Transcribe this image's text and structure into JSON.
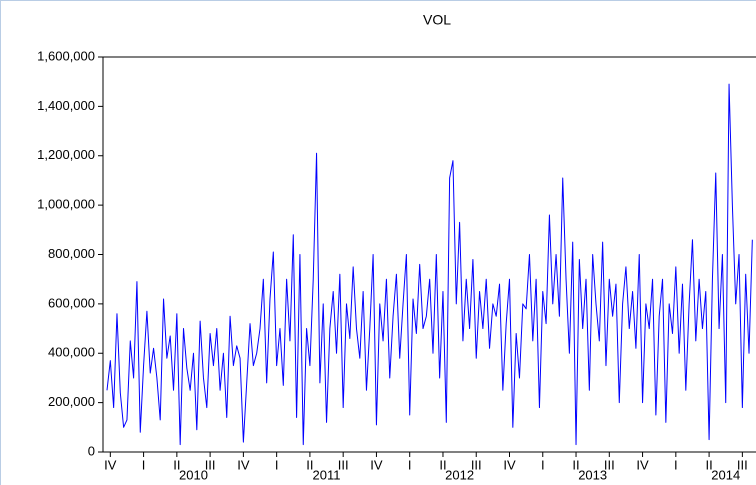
{
  "chart_data": {
    "type": "line",
    "title": "VOL",
    "xlim": [
      2009.82,
      2014.72
    ],
    "xticks": [
      {
        "value": 2009.875,
        "label": "IV"
      },
      {
        "value": 2010.125,
        "label": "I"
      },
      {
        "value": 2010.375,
        "label": "II"
      },
      {
        "value": 2010.625,
        "label": "III"
      },
      {
        "value": 2010.875,
        "label": "IV"
      },
      {
        "value": 2011.125,
        "label": "I"
      },
      {
        "value": 2011.375,
        "label": "II"
      },
      {
        "value": 2011.625,
        "label": "III"
      },
      {
        "value": 2011.875,
        "label": "IV"
      },
      {
        "value": 2012.125,
        "label": "I"
      },
      {
        "value": 2012.375,
        "label": "II"
      },
      {
        "value": 2012.625,
        "label": "III"
      },
      {
        "value": 2012.875,
        "label": "IV"
      },
      {
        "value": 2013.125,
        "label": "I"
      },
      {
        "value": 2013.375,
        "label": "II"
      },
      {
        "value": 2013.625,
        "label": "III"
      },
      {
        "value": 2013.875,
        "label": "IV"
      },
      {
        "value": 2014.125,
        "label": "I"
      },
      {
        "value": 2014.375,
        "label": "II"
      },
      {
        "value": 2014.625,
        "label": "III"
      }
    ],
    "year_labels": [
      {
        "value": 2010.5,
        "label": "2010"
      },
      {
        "value": 2011.5,
        "label": "2011"
      },
      {
        "value": 2012.5,
        "label": "2012"
      },
      {
        "value": 2013.5,
        "label": "2013"
      },
      {
        "value": 2014.5,
        "label": "2014"
      }
    ],
    "ylim": [
      0,
      1600000
    ],
    "yticks": [
      0,
      {
        "value": 200000,
        "label": "200,000"
      },
      {
        "value": 400000,
        "label": "400,000"
      },
      {
        "value": 600000,
        "label": "600,000"
      },
      {
        "value": 800000,
        "label": "800,000"
      },
      {
        "value": 1000000,
        "label": "1,000,000"
      },
      {
        "value": 1200000,
        "label": "1,200,000"
      },
      {
        "value": 1400000,
        "label": "1,400,000"
      },
      {
        "value": 1600000,
        "label": "1,600,000"
      }
    ],
    "grid": false,
    "series": [
      {
        "name": "VOL",
        "color": "#0000ff",
        "x": [
          2009.85,
          2009.875,
          2009.9,
          2009.925,
          2009.95,
          2009.975,
          2010,
          2010.025,
          2010.05,
          2010.075,
          2010.1,
          2010.125,
          2010.15,
          2010.175,
          2010.2,
          2010.225,
          2010.25,
          2010.275,
          2010.3,
          2010.325,
          2010.35,
          2010.375,
          2010.4,
          2010.425,
          2010.45,
          2010.475,
          2010.5,
          2010.525,
          2010.55,
          2010.575,
          2010.6,
          2010.625,
          2010.65,
          2010.675,
          2010.7,
          2010.725,
          2010.75,
          2010.775,
          2010.8,
          2010.825,
          2010.85,
          2010.875,
          2010.9,
          2010.925,
          2010.95,
          2010.975,
          2011,
          2011.025,
          2011.05,
          2011.075,
          2011.1,
          2011.125,
          2011.15,
          2011.175,
          2011.2,
          2011.225,
          2011.25,
          2011.275,
          2011.3,
          2011.325,
          2011.35,
          2011.375,
          2011.4,
          2011.425,
          2011.45,
          2011.475,
          2011.5,
          2011.525,
          2011.55,
          2011.575,
          2011.6,
          2011.625,
          2011.65,
          2011.675,
          2011.7,
          2011.725,
          2011.75,
          2011.775,
          2011.8,
          2011.825,
          2011.85,
          2011.875,
          2011.9,
          2011.925,
          2011.95,
          2011.975,
          2012,
          2012.025,
          2012.05,
          2012.075,
          2012.1,
          2012.125,
          2012.15,
          2012.175,
          2012.2,
          2012.225,
          2012.25,
          2012.275,
          2012.3,
          2012.325,
          2012.35,
          2012.375,
          2012.4,
          2012.425,
          2012.45,
          2012.475,
          2012.5,
          2012.525,
          2012.55,
          2012.575,
          2012.6,
          2012.625,
          2012.65,
          2012.675,
          2012.7,
          2012.725,
          2012.75,
          2012.775,
          2012.8,
          2012.825,
          2012.85,
          2012.875,
          2012.9,
          2012.925,
          2012.95,
          2012.975,
          2013,
          2013.025,
          2013.05,
          2013.075,
          2013.1,
          2013.125,
          2013.15,
          2013.175,
          2013.2,
          2013.225,
          2013.25,
          2013.275,
          2013.3,
          2013.325,
          2013.35,
          2013.375,
          2013.4,
          2013.425,
          2013.45,
          2013.475,
          2013.5,
          2013.525,
          2013.55,
          2013.575,
          2013.6,
          2013.625,
          2013.65,
          2013.675,
          2013.7,
          2013.725,
          2013.75,
          2013.775,
          2013.8,
          2013.825,
          2013.85,
          2013.875,
          2013.9,
          2013.925,
          2013.95,
          2013.975,
          2014,
          2014.025,
          2014.05,
          2014.075,
          2014.1,
          2014.125,
          2014.15,
          2014.175,
          2014.2,
          2014.225,
          2014.25,
          2014.275,
          2014.3,
          2014.325,
          2014.35,
          2014.375,
          2014.4,
          2014.425,
          2014.45,
          2014.475,
          2014.5,
          2014.525,
          2014.55,
          2014.575,
          2014.6,
          2014.625,
          2014.65,
          2014.675,
          2014.7
        ],
        "values": [
          250000,
          370000,
          180000,
          560000,
          240000,
          100000,
          130000,
          450000,
          300000,
          690000,
          80000,
          350000,
          570000,
          320000,
          420000,
          300000,
          130000,
          620000,
          380000,
          470000,
          250000,
          560000,
          30000,
          500000,
          340000,
          250000,
          400000,
          90000,
          530000,
          300000,
          180000,
          480000,
          350000,
          500000,
          250000,
          400000,
          140000,
          550000,
          350000,
          430000,
          380000,
          40000,
          280000,
          520000,
          350000,
          400000,
          500000,
          700000,
          280000,
          620000,
          810000,
          350000,
          500000,
          270000,
          700000,
          450000,
          880000,
          140000,
          800000,
          30000,
          500000,
          350000,
          700000,
          1210000,
          280000,
          600000,
          120000,
          500000,
          650000,
          400000,
          720000,
          180000,
          600000,
          460000,
          750000,
          500000,
          380000,
          650000,
          250000,
          500000,
          800000,
          110000,
          600000,
          450000,
          700000,
          300000,
          550000,
          720000,
          380000,
          600000,
          800000,
          150000,
          620000,
          480000,
          760000,
          500000,
          550000,
          700000,
          400000,
          800000,
          300000,
          650000,
          120000,
          1110000,
          1180000,
          600000,
          930000,
          450000,
          700000,
          500000,
          780000,
          380000,
          650000,
          500000,
          700000,
          420000,
          600000,
          550000,
          680000,
          250000,
          520000,
          700000,
          100000,
          480000,
          300000,
          600000,
          580000,
          800000,
          450000,
          700000,
          180000,
          650000,
          520000,
          960000,
          600000,
          800000,
          550000,
          1110000,
          700000,
          400000,
          850000,
          30000,
          780000,
          500000,
          700000,
          250000,
          800000,
          600000,
          450000,
          850000,
          350000,
          700000,
          550000,
          680000,
          200000,
          600000,
          750000,
          500000,
          650000,
          420000,
          800000,
          200000,
          600000,
          500000,
          700000,
          150000,
          550000,
          700000,
          120000,
          600000,
          480000,
          750000,
          400000,
          680000,
          250000,
          600000,
          860000,
          450000,
          700000,
          500000,
          650000,
          50000,
          700000,
          1130000,
          500000,
          800000,
          200000,
          1490000,
          1000000,
          600000,
          800000,
          180000,
          720000,
          400000,
          860000
        ]
      }
    ]
  }
}
